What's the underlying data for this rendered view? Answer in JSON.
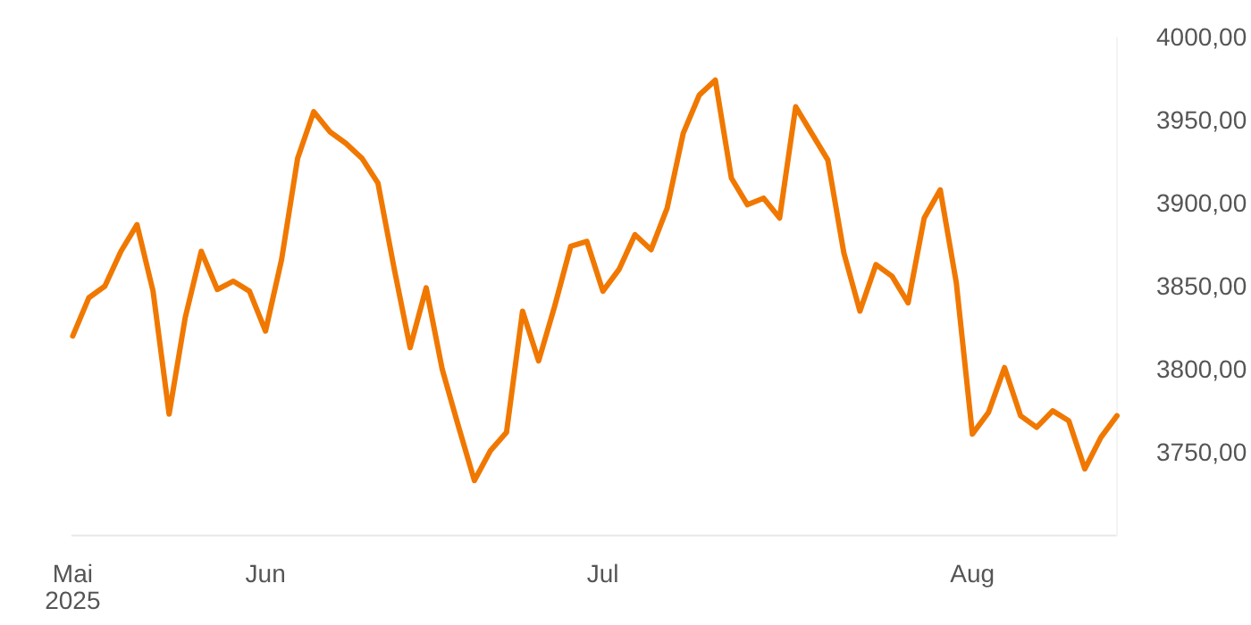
{
  "chart_data": {
    "type": "line",
    "categories": [
      "Mai\n2025",
      null,
      null,
      null,
      null,
      null,
      null,
      null,
      null,
      null,
      null,
      null,
      "Jun",
      null,
      null,
      null,
      null,
      null,
      null,
      null,
      null,
      null,
      null,
      null,
      null,
      null,
      null,
      null,
      null,
      null,
      null,
      null,
      null,
      "Jul",
      null,
      null,
      null,
      null,
      null,
      null,
      null,
      null,
      null,
      null,
      null,
      null,
      null,
      null,
      null,
      null,
      null,
      null,
      null,
      null,
      null,
      null,
      "Aug",
      null,
      null,
      null,
      null,
      null,
      null,
      null,
      null,
      null
    ],
    "series": [
      {
        "color": "#f07800",
        "values": [
          3820,
          3843,
          3850,
          3871,
          3887,
          3847,
          3773,
          3831,
          3871,
          3848,
          3853,
          3847,
          3823,
          3866,
          3927,
          3955,
          3943,
          3936,
          3927,
          3912,
          3861,
          3813,
          3849,
          3800,
          3766,
          3733,
          3751,
          3762,
          3835,
          3805,
          3838,
          3874,
          3877,
          3847,
          3860,
          3881,
          3872,
          3897,
          3942,
          3965,
          3974,
          3915,
          3899,
          3903,
          3891,
          3958,
          3942,
          3926,
          3870,
          3835,
          3863,
          3856,
          3840,
          3891,
          3908,
          3852,
          3761,
          3774,
          3801,
          3772,
          3765,
          3775,
          3769,
          3740,
          3759,
          3772
        ]
      }
    ],
    "yticks": [
      {
        "value": 3750,
        "label": "3750,00"
      },
      {
        "value": 3800,
        "label": "3800,00"
      },
      {
        "value": 3850,
        "label": "3850,00"
      },
      {
        "value": 3900,
        "label": "3900,00"
      },
      {
        "value": 3950,
        "label": "3950,00"
      },
      {
        "value": 4000,
        "label": "4000,00"
      }
    ],
    "ylim": [
      3700,
      4000
    ],
    "grid": false,
    "marker": "none",
    "line_style": "solid"
  }
}
